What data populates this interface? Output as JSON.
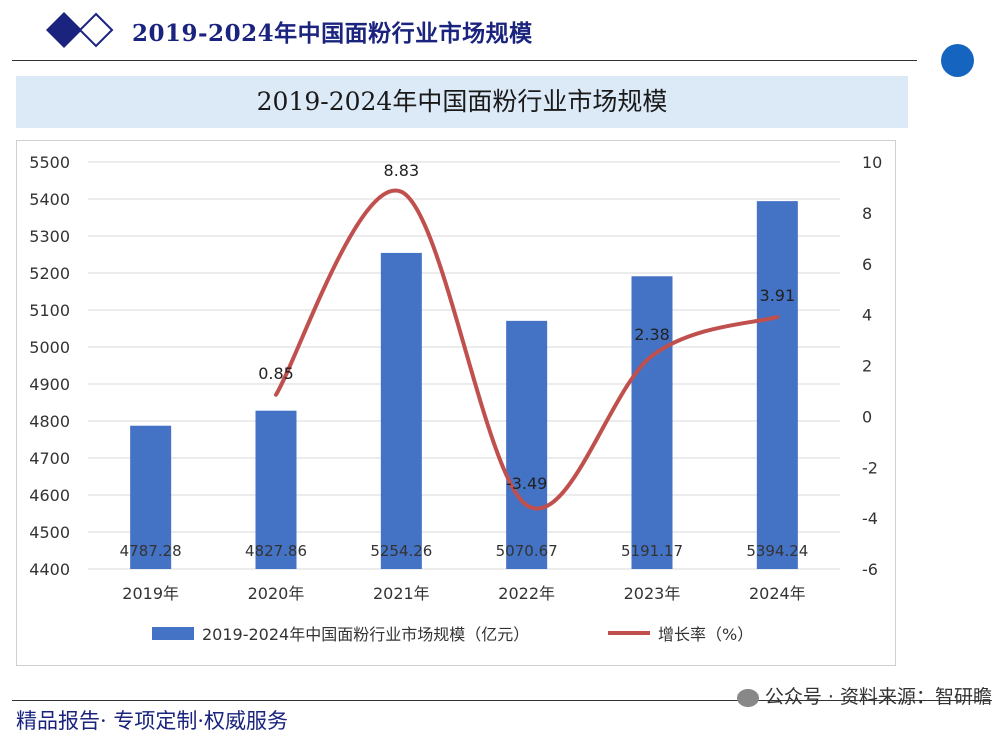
{
  "header": {
    "title": "2019-2024年中国面粉行业市场规模"
  },
  "banner": {
    "title": "2019-2024年中国面粉行业市场规模"
  },
  "footer": {
    "left": "精品报告· 专项定制·权威服务",
    "right": "公众号 · 资料来源：智研瞻"
  },
  "colors": {
    "bar": "#4472c4",
    "line": "#c0504d",
    "banner_bg": "#dce9f7",
    "title": "#1a237e"
  },
  "chart_data": {
    "type": "bar",
    "categories": [
      "2019年",
      "2020年",
      "2021年",
      "2022年",
      "2023年",
      "2024年"
    ],
    "series": [
      {
        "name": "2019-2024年中国面粉行业市场规模（亿元）",
        "type": "bar",
        "axis": "left",
        "values": [
          4787.28,
          4827.86,
          5254.26,
          5070.67,
          5191.17,
          5394.24
        ],
        "labels": [
          "4787.28",
          "4827.86",
          "5254.26",
          "5070.67",
          "5191.17",
          "5394.24"
        ]
      },
      {
        "name": "增长率（%）",
        "type": "line",
        "axis": "right",
        "values": [
          null,
          0.85,
          8.83,
          -3.49,
          2.38,
          3.91
        ],
        "labels": [
          "",
          "0.85",
          "8.83",
          "-3.49",
          "2.38",
          "3.91"
        ]
      }
    ],
    "ylim": [
      4400,
      5500
    ],
    "y2lim": [
      -6,
      10
    ],
    "yticks": [
      4400,
      4500,
      4600,
      4700,
      4800,
      4900,
      5000,
      5100,
      5200,
      5300,
      5400,
      5500
    ],
    "y2ticks": [
      -6,
      -4,
      -2,
      0,
      2,
      4,
      6,
      8,
      10
    ],
    "grid": true,
    "legend": "bottom"
  }
}
